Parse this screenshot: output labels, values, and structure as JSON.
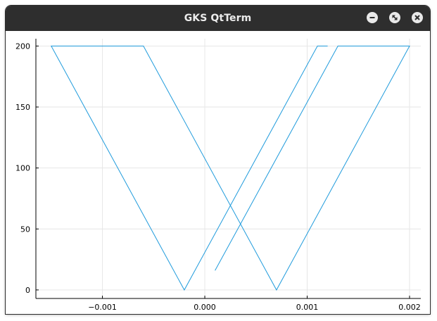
{
  "window": {
    "title": "GKS QtTerm",
    "buttons": {
      "minimize": "minimize-icon",
      "maximize": "maximize-icon",
      "close": "close-icon"
    }
  },
  "colors": {
    "series": "#1f9bdc",
    "titlebar": "#2e2e2e",
    "grid": "#e6e6e6",
    "axis": "#000000"
  },
  "chart_data": {
    "type": "line",
    "title": "",
    "xlabel": "",
    "ylabel": "",
    "xlim": [
      -0.00165,
      0.00211
    ],
    "ylim": [
      -7,
      206
    ],
    "grid": true,
    "legend": "none",
    "xticks": [
      -0.001,
      0.0,
      0.001,
      0.002
    ],
    "xtick_labels": [
      "−0.001",
      "0.000",
      "0.001",
      "0.002"
    ],
    "yticks": [
      0,
      50,
      100,
      150,
      200
    ],
    "ytick_labels": [
      "0",
      "50",
      "100",
      "150",
      "200"
    ],
    "series": [
      {
        "x": [
          0.0012,
          0.0011,
          -0.0002,
          -0.0015,
          -0.0006,
          0.0007,
          0.002,
          0.0013,
          0.0001
        ],
        "y": [
          200,
          200,
          0,
          200,
          200,
          0,
          200,
          200,
          16
        ]
      }
    ]
  }
}
